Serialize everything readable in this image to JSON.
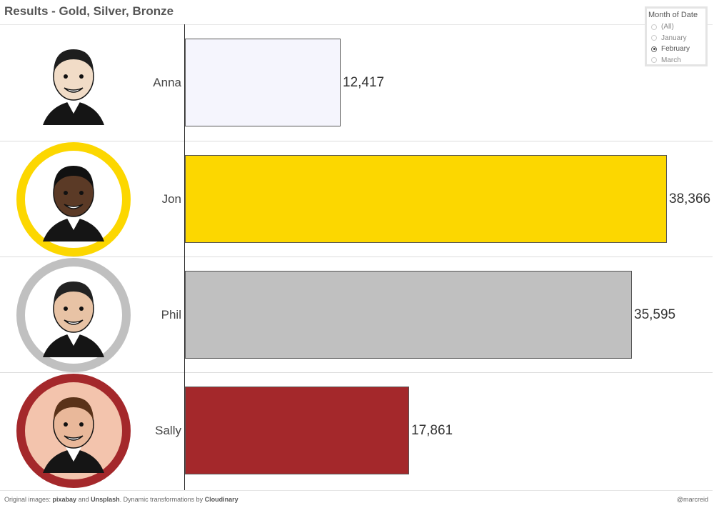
{
  "title": "Results - Gold, Silver, Bronze",
  "filter": {
    "title": "Month of Date",
    "options": [
      "(All)",
      "January",
      "February",
      "March"
    ],
    "selected": "February"
  },
  "colors": {
    "gold": "#fcd700",
    "silver": "#c0c0c0",
    "bronze": "#a4282b",
    "none": "#f5f5fd"
  },
  "chart_data": {
    "type": "bar",
    "orientation": "horizontal",
    "categories": [
      "Anna",
      "Jon",
      "Phil",
      "Sally"
    ],
    "values": [
      12417,
      38366,
      35595,
      17861
    ],
    "value_labels": [
      "12,417",
      "38,366",
      "35,595",
      "17,861"
    ],
    "medals": [
      "none",
      "gold",
      "silver",
      "bronze"
    ],
    "xlim": [
      0,
      42000
    ],
    "grid": false
  },
  "footer": {
    "prefix": "Original images: ",
    "source1": "pixabay",
    "and": " and ",
    "source2": "Unsplash",
    "middle": ".  Dynamic transformations by ",
    "source3": "Cloudinary",
    "credit": "@marcreid"
  }
}
